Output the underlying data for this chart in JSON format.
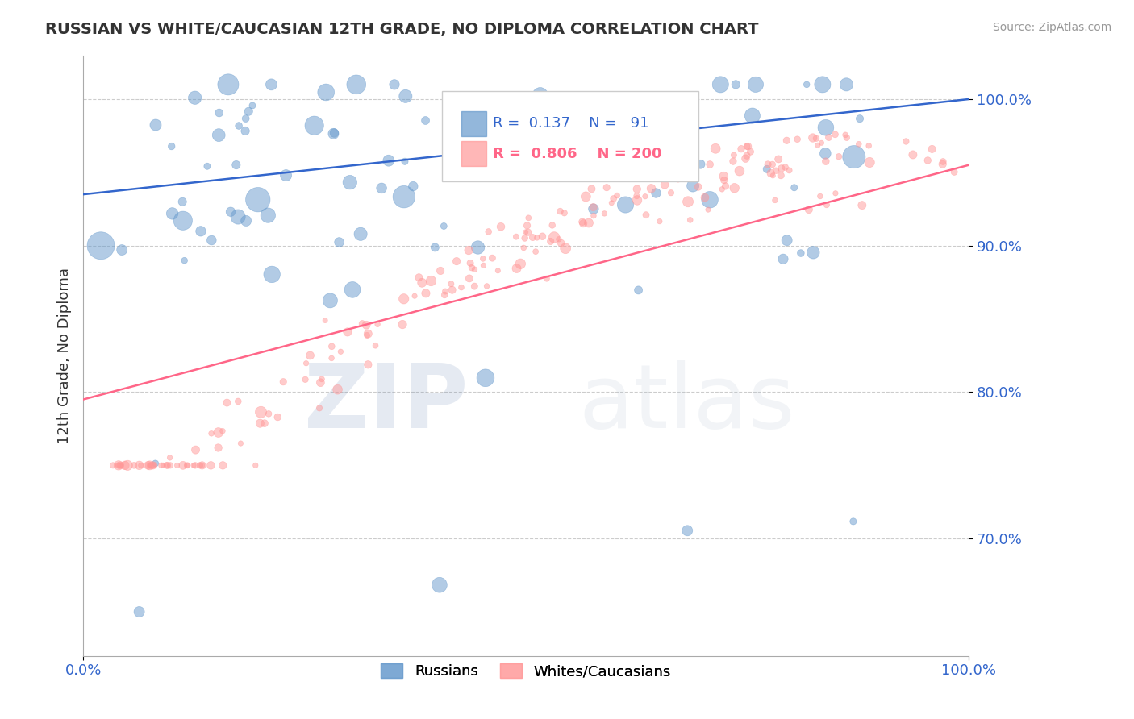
{
  "title": "RUSSIAN VS WHITE/CAUCASIAN 12TH GRADE, NO DIPLOMA CORRELATION CHART",
  "source": "Source: ZipAtlas.com",
  "ylabel": "12th Grade, No Diploma",
  "xlim": [
    0,
    1
  ],
  "ylim": [
    0.62,
    1.03
  ],
  "yticks": [
    0.7,
    0.8,
    0.9,
    1.0
  ],
  "ytick_labels": [
    "70.0%",
    "80.0%",
    "90.0%",
    "100.0%"
  ],
  "xtick_labels": [
    "0.0%",
    "100.0%"
  ],
  "blue_R": 0.137,
  "blue_N": 91,
  "pink_R": 0.806,
  "pink_N": 200,
  "blue_color": "#6699CC",
  "pink_color": "#FF9999",
  "blue_line_color": "#3366CC",
  "pink_line_color": "#FF6688",
  "legend_label_blue": "Russians",
  "legend_label_pink": "Whites/Caucasians",
  "watermark_zip": "ZIP",
  "watermark_atlas": "atlas",
  "bg_color": "#FFFFFF",
  "grid_color": "#CCCCCC",
  "title_color": "#333333",
  "axis_label_color": "#3366CC"
}
